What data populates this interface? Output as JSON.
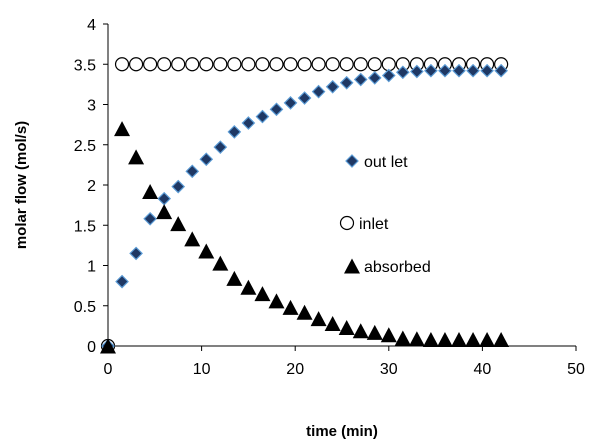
{
  "chart_data": {
    "type": "scatter",
    "title": "",
    "xlabel": "time (min)",
    "ylabel": "molar flow (mol/s)",
    "xlim": [
      0,
      50
    ],
    "ylim": [
      0,
      4
    ],
    "xticks": [
      "0",
      "10",
      "20",
      "30",
      "40",
      "50"
    ],
    "yticks": [
      "0",
      "0.5",
      "1",
      "1.5",
      "2",
      "2.5",
      "3",
      "3.5",
      "4"
    ],
    "grid": false,
    "legend_position": "inside-right",
    "series": [
      {
        "name": "out let",
        "marker": "diamond",
        "color": "#1f3864",
        "edge_color": "#5b9bd5",
        "x": [
          0,
          1.5,
          3,
          4.5,
          6,
          7.5,
          9,
          10.5,
          12,
          13.5,
          15,
          16.5,
          18,
          19.5,
          21,
          22.5,
          24,
          25.5,
          27,
          28.5,
          30,
          31.5,
          33,
          34.5,
          36,
          37.5,
          39,
          40.5,
          42
        ],
        "y": [
          0,
          0.8,
          1.15,
          1.58,
          1.83,
          1.98,
          2.17,
          2.32,
          2.47,
          2.66,
          2.77,
          2.85,
          2.94,
          3.02,
          3.08,
          3.16,
          3.22,
          3.27,
          3.31,
          3.33,
          3.36,
          3.4,
          3.41,
          3.42,
          3.42,
          3.42,
          3.42,
          3.42,
          3.42
        ]
      },
      {
        "name": "inlet",
        "marker": "circle-open",
        "color": "#000000",
        "x": [
          0,
          1.5,
          3,
          4.5,
          6,
          7.5,
          9,
          10.5,
          12,
          13.5,
          15,
          16.5,
          18,
          19.5,
          21,
          22.5,
          24,
          25.5,
          27,
          28.5,
          30,
          31.5,
          33,
          34.5,
          36,
          37.5,
          39,
          40.5,
          42
        ],
        "y": [
          0,
          3.5,
          3.5,
          3.5,
          3.5,
          3.5,
          3.5,
          3.5,
          3.5,
          3.5,
          3.5,
          3.5,
          3.5,
          3.5,
          3.5,
          3.5,
          3.5,
          3.5,
          3.5,
          3.5,
          3.5,
          3.5,
          3.5,
          3.5,
          3.5,
          3.5,
          3.5,
          3.5,
          3.5
        ]
      },
      {
        "name": "absorbed",
        "marker": "triangle",
        "color": "#000000",
        "x": [
          0,
          1.5,
          3,
          4.5,
          6,
          7.5,
          9,
          10.5,
          12,
          13.5,
          15,
          16.5,
          18,
          19.5,
          21,
          22.5,
          24,
          25.5,
          27,
          28.5,
          30,
          31.5,
          33,
          34.5,
          36,
          37.5,
          39,
          40.5,
          42
        ],
        "y": [
          0,
          2.7,
          2.35,
          1.92,
          1.67,
          1.52,
          1.33,
          1.18,
          1.03,
          0.84,
          0.73,
          0.65,
          0.56,
          0.48,
          0.42,
          0.34,
          0.28,
          0.23,
          0.19,
          0.17,
          0.14,
          0.1,
          0.09,
          0.08,
          0.08,
          0.08,
          0.08,
          0.08,
          0.08
        ]
      }
    ]
  }
}
